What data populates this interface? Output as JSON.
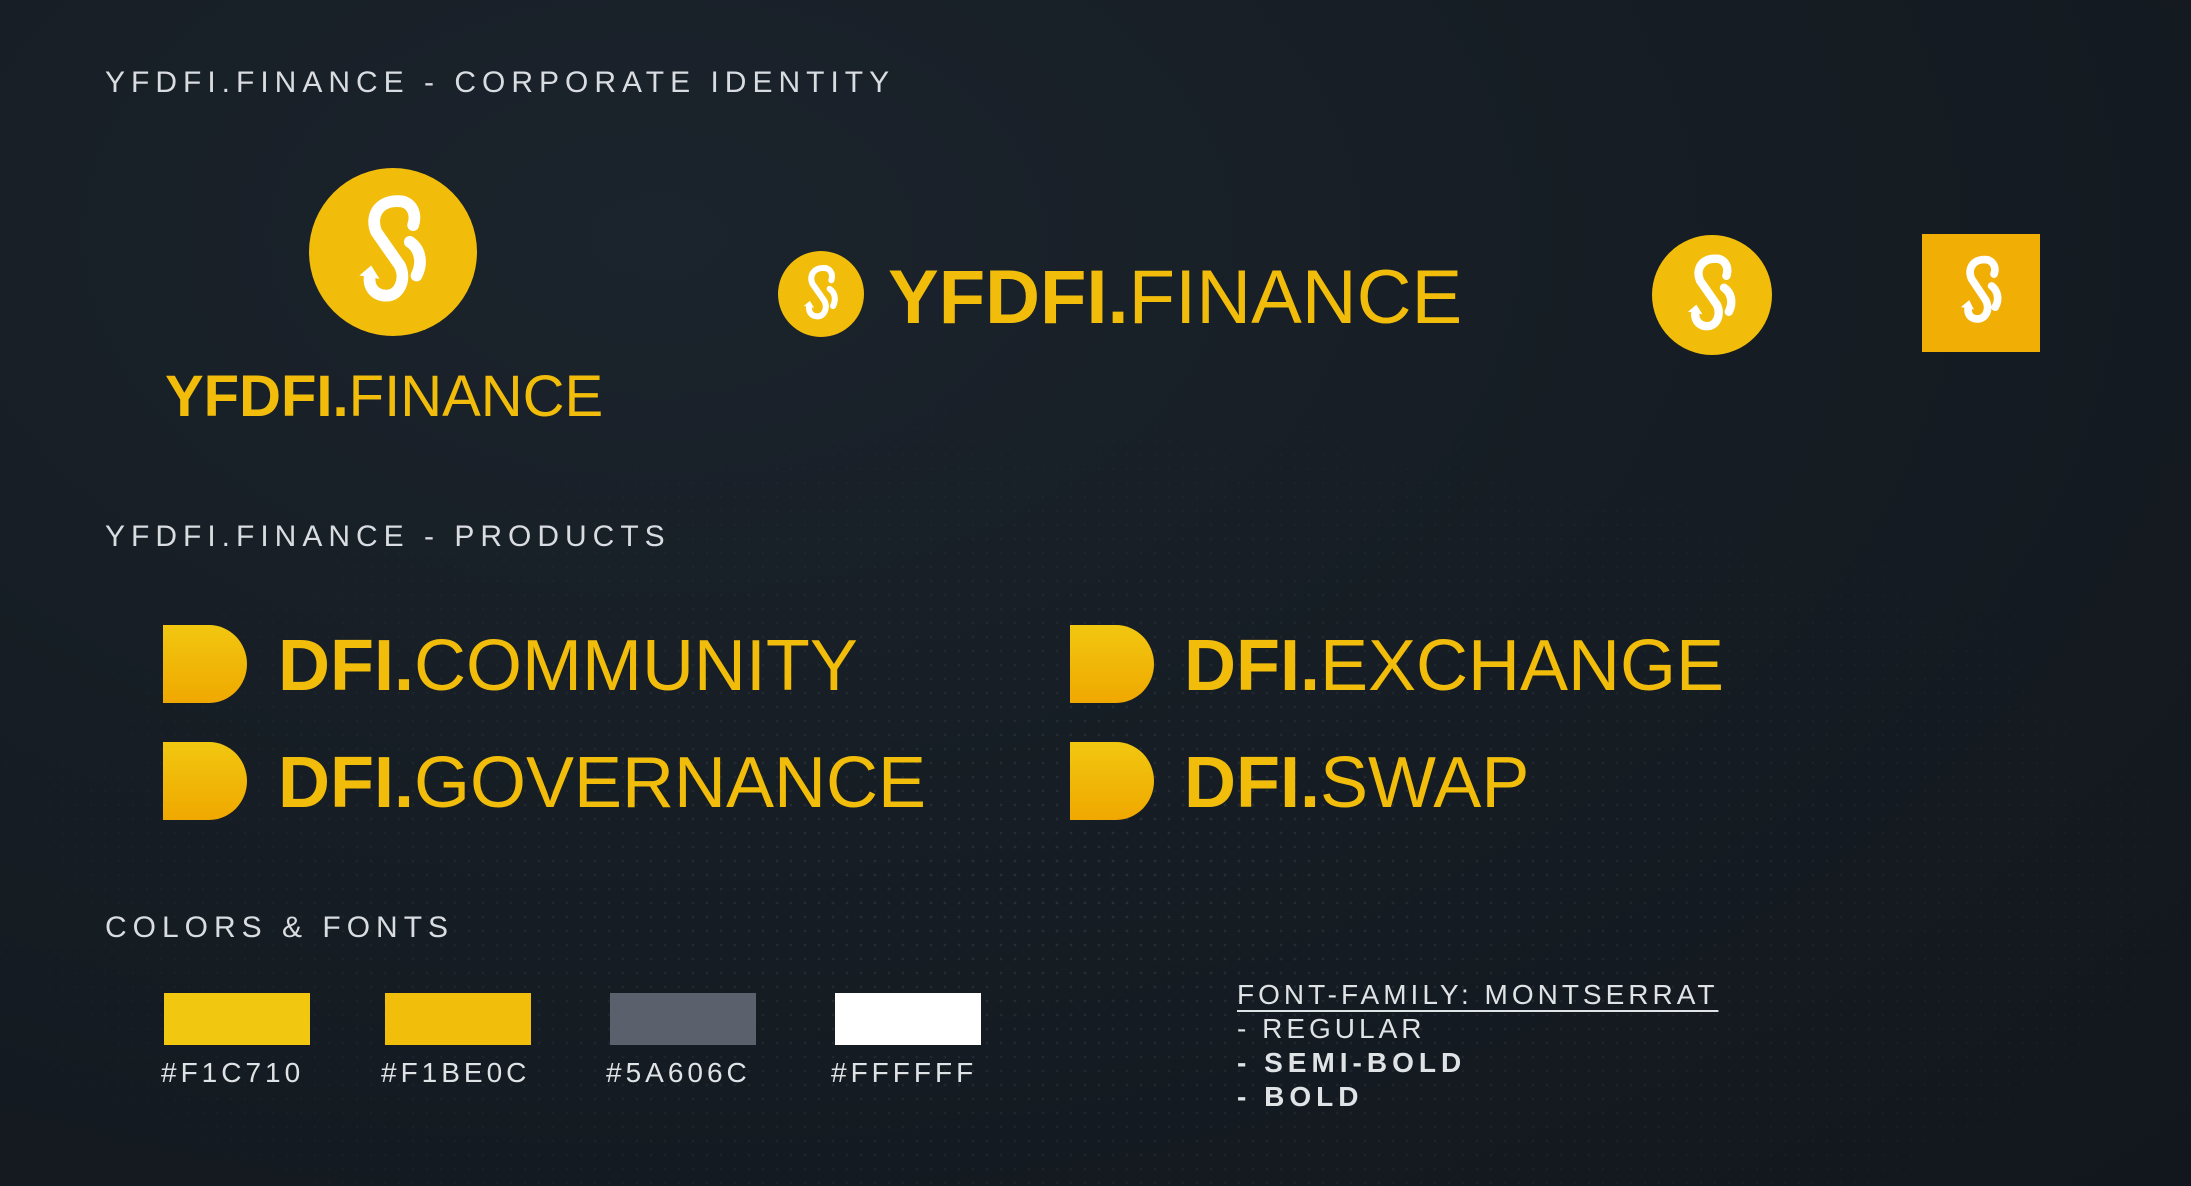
{
  "sections": {
    "identity_title": "YFDFI.FINANCE - CORPORATE IDENTITY",
    "products_title": "YFDFI.FINANCE - PRODUCTS",
    "colors_title": "COLORS & FONTS"
  },
  "brand": {
    "wordmark_bold": "YFDFI.",
    "wordmark_light": "FINANCE",
    "logo_icon": "yfi-swirl-icon"
  },
  "products": [
    {
      "bold": "DFI.",
      "light": "COMMUNITY"
    },
    {
      "bold": "DFI.",
      "light": "EXCHANGE"
    },
    {
      "bold": "DFI.",
      "light": "GOVERNANCE"
    },
    {
      "bold": "DFI.",
      "light": "SWAP"
    }
  ],
  "colors": [
    {
      "hex": "#F1C710",
      "value": "#F1C710"
    },
    {
      "hex": "#F1BE0C",
      "value": "#F1BE0C"
    },
    {
      "hex": "#5A606C",
      "value": "#5A606C"
    },
    {
      "hex": "#FFFFFF",
      "value": "#FFFFFF"
    }
  ],
  "fonts": {
    "family": "FONT-FAMILY: MONTSERRAT",
    "weights": [
      "- REGULAR",
      "- SEMI-BOLD",
      "- BOLD"
    ]
  }
}
